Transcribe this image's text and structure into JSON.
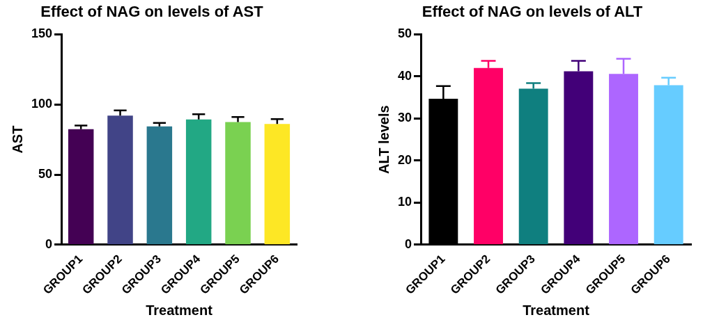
{
  "chart_data": [
    {
      "type": "bar",
      "title": "Effect of NAG on levels of AST",
      "xlabel": "Treatment",
      "ylabel": "AST",
      "categories": [
        "GROUP1",
        "GROUP2",
        "GROUP3",
        "GROUP4",
        "GROUP5",
        "GROUP6"
      ],
      "values": [
        82.4,
        92,
        84.4,
        89.3,
        87.4,
        86.1
      ],
      "errors": [
        [
          82.4,
          85
        ],
        [
          92,
          95.7
        ],
        [
          84.4,
          86.8
        ],
        [
          89.3,
          93
        ],
        [
          87.4,
          91
        ],
        [
          86.1,
          89.6
        ]
      ],
      "colors": [
        "#440154",
        "#414487",
        "#2a788e",
        "#22a884",
        "#7ad151",
        "#fde725"
      ],
      "ylim": [
        0,
        150
      ],
      "yticks": [
        0,
        50,
        100,
        150
      ],
      "grid": false,
      "legend": false
    },
    {
      "type": "bar",
      "title": "Effect of NAG on levels of ALT",
      "xlabel": "Treatment",
      "ylabel": "ALT levels",
      "categories": [
        "GROUP1",
        "GROUP2",
        "GROUP3",
        "GROUP4",
        "GROUP5",
        "GROUP6"
      ],
      "values": [
        34.7,
        42,
        37.1,
        41.2,
        40.6,
        37.9
      ],
      "errors": [
        [
          34.7,
          37.7
        ],
        [
          42,
          43.7
        ],
        [
          37.1,
          38.4
        ],
        [
          41.2,
          43.7
        ],
        [
          40.6,
          44.2
        ],
        [
          37.9,
          39.7
        ]
      ],
      "colors": [
        "#000000",
        "#ff0066",
        "#0f7f7f",
        "#420078",
        "#ad66ff",
        "#66ccff"
      ],
      "ylim": [
        0,
        50
      ],
      "yticks": [
        0,
        10,
        20,
        30,
        40,
        50
      ],
      "grid": false,
      "legend": false
    }
  ]
}
